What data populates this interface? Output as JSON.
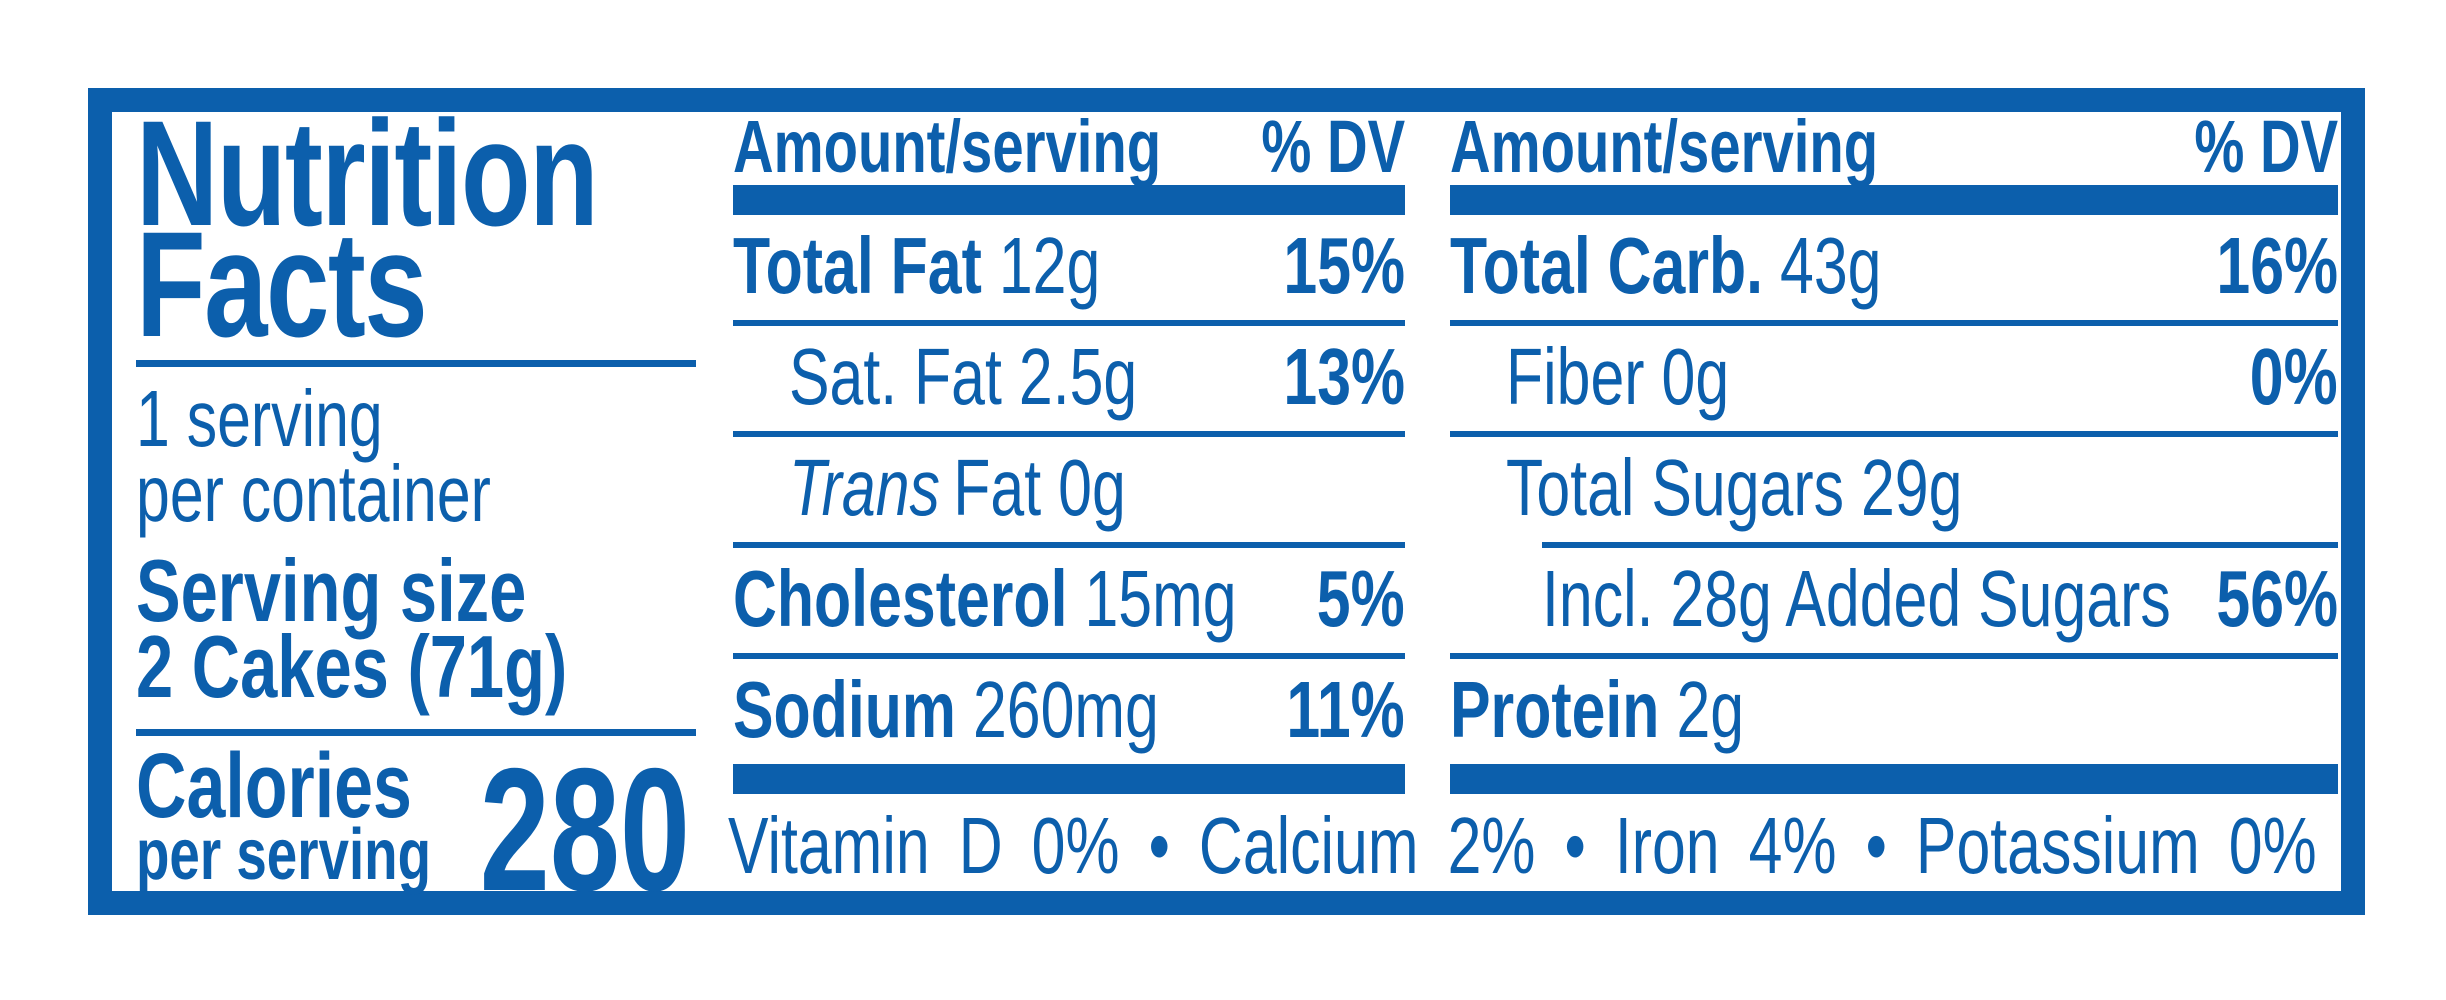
{
  "colors": {
    "blue": "#0C5FAC",
    "background": "#FFFFFF"
  },
  "label": {
    "title_line1": "Nutrition",
    "title_line2": "Facts",
    "servings_line1": "1 serving",
    "servings_line2": "per container",
    "serving_size_label": "Serving size",
    "serving_size_value": "2 Cakes (71g)",
    "calories_label_line1": "Calories",
    "calories_label_line2": "per serving",
    "calories_value": "280",
    "columns": [
      {
        "header_amount": "Amount/serving",
        "header_dv": "% DV",
        "rows": [
          {
            "name": "Total Fat",
            "value": "12g",
            "dv": "15%"
          },
          {
            "name": "Sat. Fat",
            "value": "2.5g",
            "dv": "13%"
          },
          {
            "name_italic": "Trans",
            "name": "Fat",
            "value": "0g",
            "dv": ""
          },
          {
            "name": "Cholesterol",
            "value": "15mg",
            "dv": "5%"
          },
          {
            "name": "Sodium",
            "value": "260mg",
            "dv": "11%"
          }
        ]
      },
      {
        "header_amount": "Amount/serving",
        "header_dv": "% DV",
        "rows": [
          {
            "name": "Total Carb.",
            "value": "43g",
            "dv": "16%"
          },
          {
            "name": "Fiber",
            "value": "0g",
            "dv": "0%"
          },
          {
            "name": "Total Sugars",
            "value": "29g",
            "dv": ""
          },
          {
            "name": "Incl. 28g Added Sugars",
            "value": "",
            "dv": "56%"
          },
          {
            "name": "Protein",
            "value": "2g",
            "dv": ""
          }
        ]
      }
    ],
    "footnote": "Vitamin D 0% • Calcium 2% • Iron 4% • Potassium 0%"
  }
}
